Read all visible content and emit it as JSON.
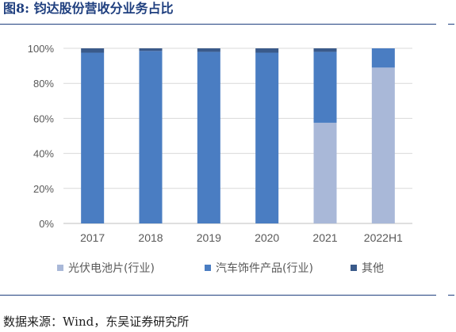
{
  "page": {
    "figure_title": "图8:  钧达股份营收分业务占比",
    "source": "数据来源：Wind，东吴证券研究所"
  },
  "colors": {
    "title": "#1f3f7f",
    "pv": "#a9b8d8",
    "auto": "#4a7dc2",
    "other": "#3a5a8a",
    "grid": "#d9d9d9",
    "axis_text": "#595959"
  },
  "chart_data": {
    "type": "bar",
    "stacked": true,
    "categories": [
      "2017",
      "2018",
      "2019",
      "2020",
      "2021",
      "2022H1"
    ],
    "series": [
      {
        "name": "光伏电池片(行业)",
        "color": "#a9b8d8",
        "values": [
          0,
          0,
          0,
          0,
          57.5,
          89
        ]
      },
      {
        "name": "汽车饰件产品(行业)",
        "color": "#4a7dc2",
        "values": [
          97.5,
          98.5,
          98,
          97.5,
          40.5,
          11
        ]
      },
      {
        "name": "其他",
        "color": "#3a5a8a",
        "values": [
          2.5,
          1.5,
          2,
          2.5,
          2,
          0
        ]
      }
    ],
    "ylim": [
      0,
      100
    ],
    "yticks": [
      "0%",
      "20%",
      "40%",
      "60%",
      "80%",
      "100%"
    ],
    "ytick_values": [
      0,
      20,
      40,
      60,
      80,
      100
    ],
    "grid": true,
    "legend_position": "bottom",
    "title": "",
    "xlabel": "",
    "ylabel": ""
  }
}
